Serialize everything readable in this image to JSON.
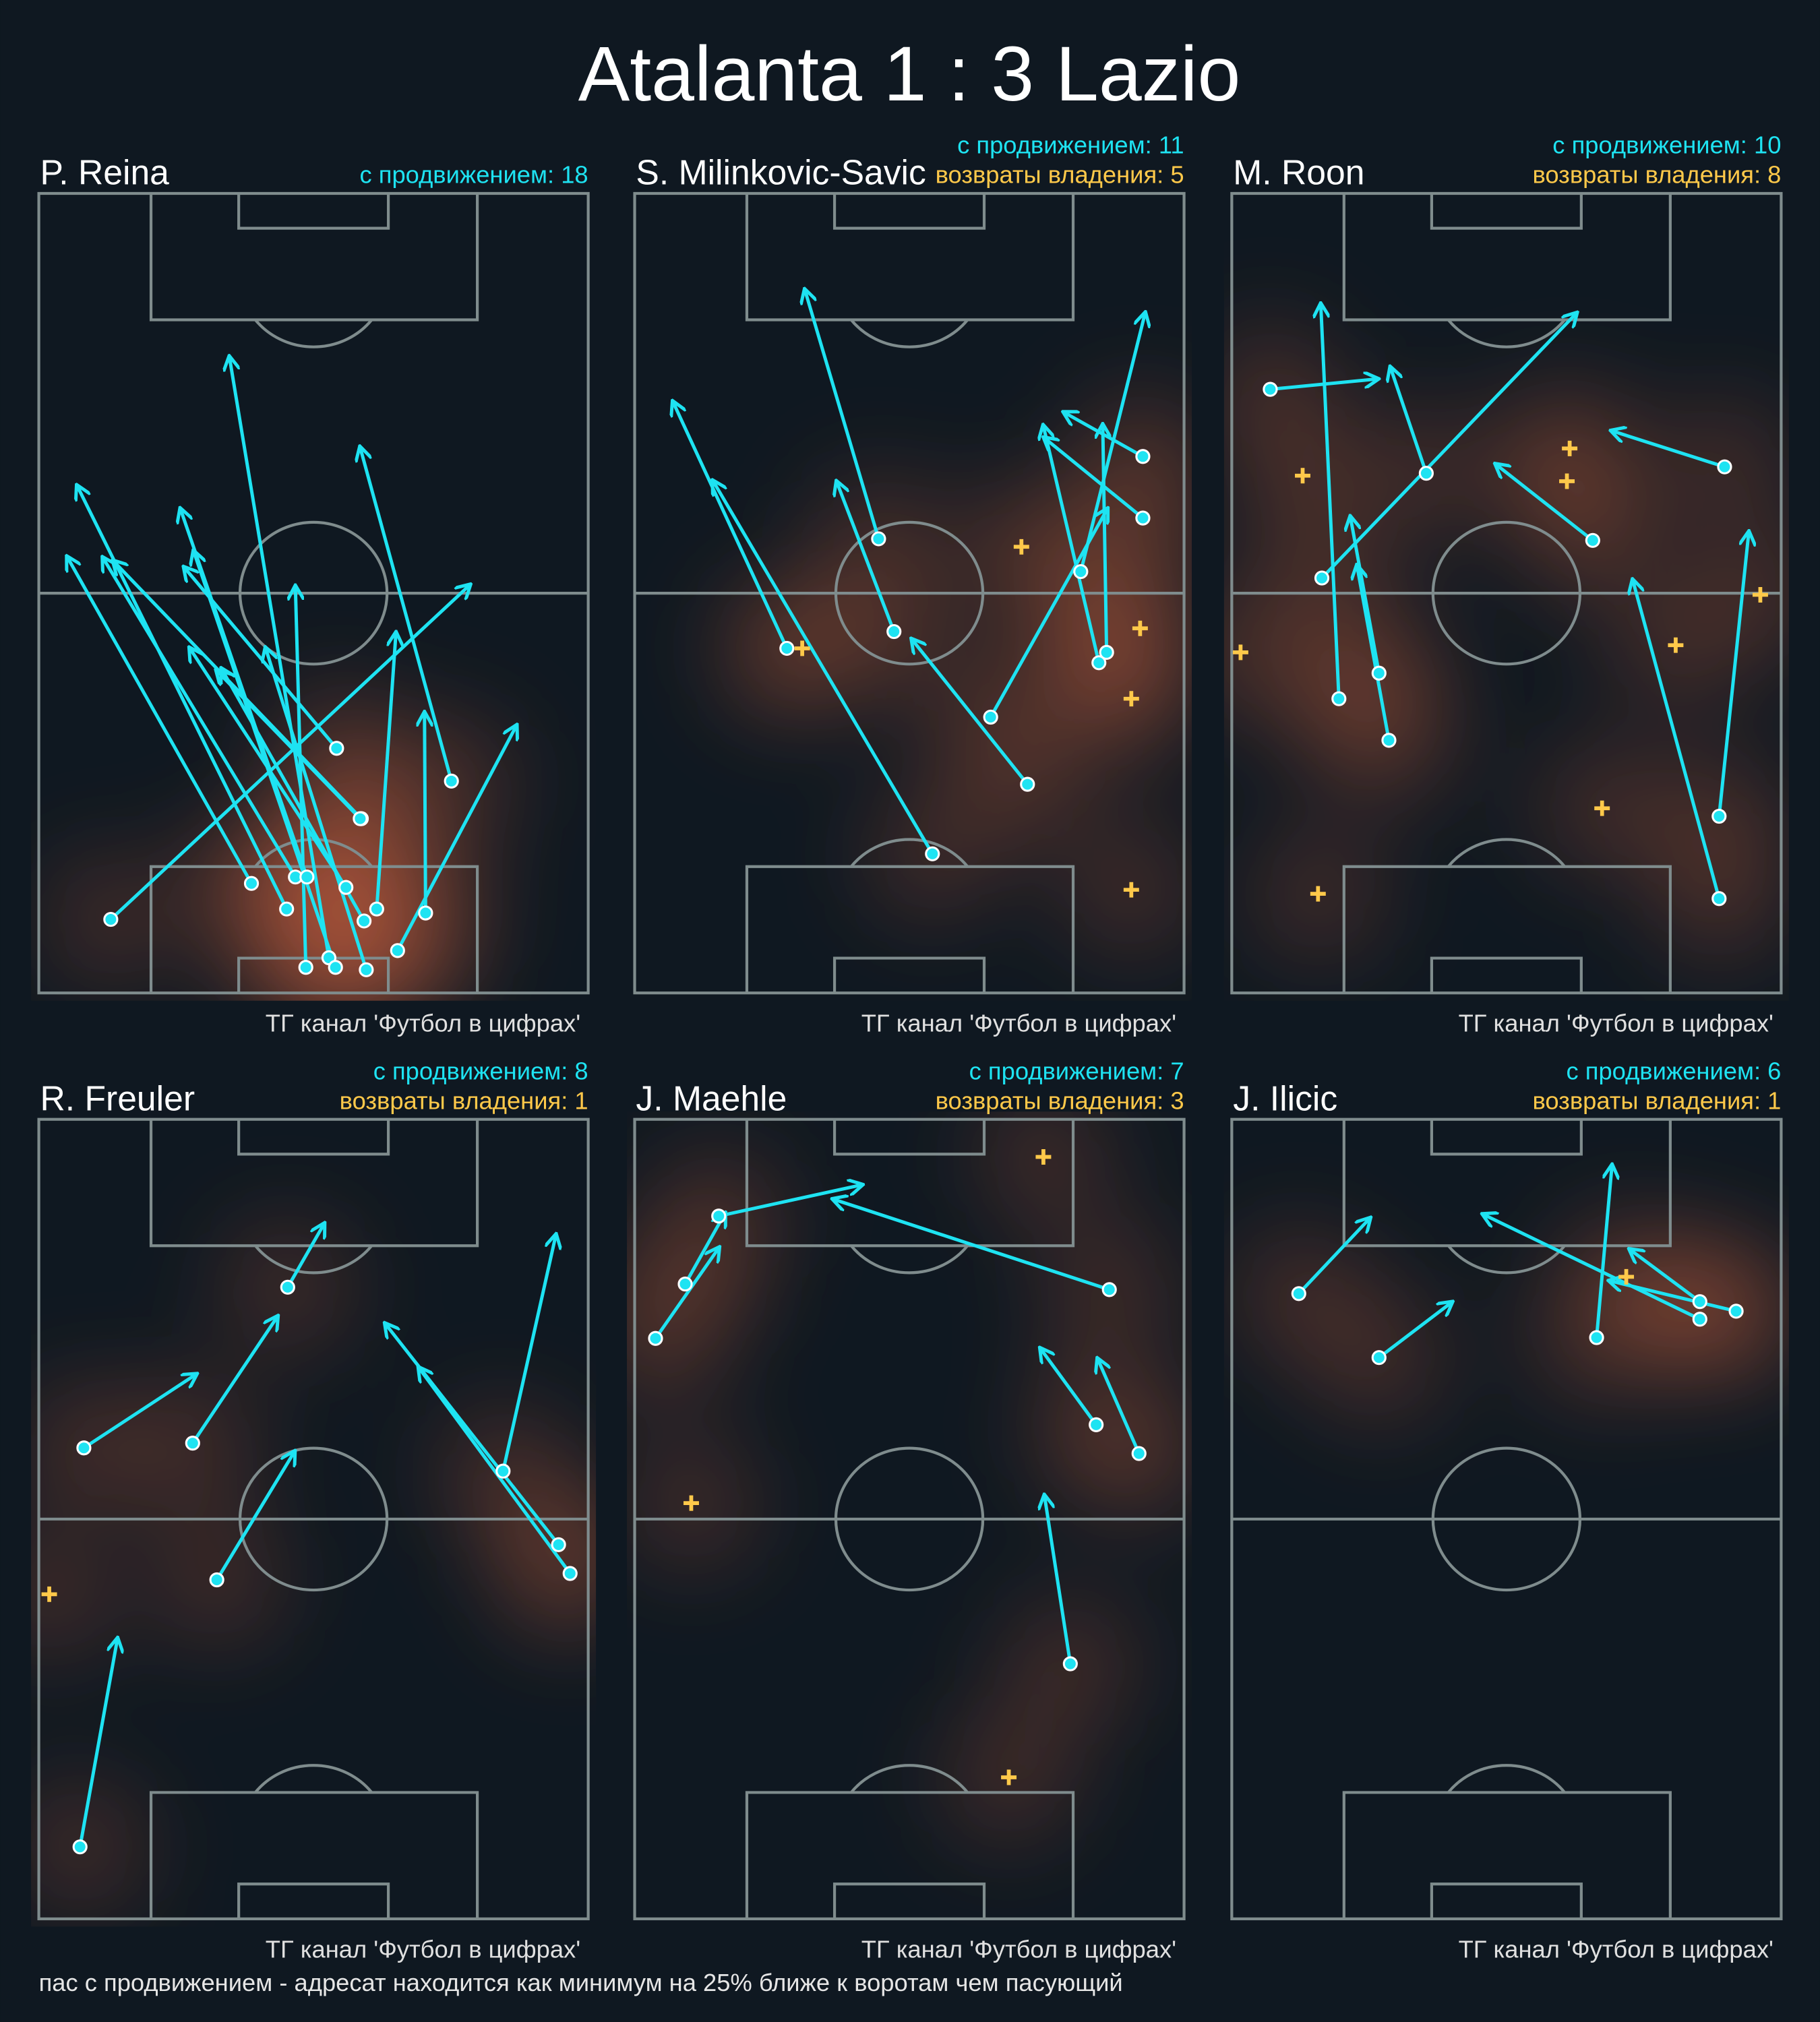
{
  "title": "Atalanta 1 : 3 Lazio",
  "footnote": "пас с продвижением - адресат находится как минимум на 25% ближе к воротам чем пасующий",
  "chart_data": [
    {
      "type": "pass-map",
      "title": "P. Reina",
      "progressive_label": "с продвижением: 18",
      "watermark": "ТГ канал 'Футбол в цифрах'",
      "xlim": [
        0,
        100
      ],
      "ylim": [
        0,
        100
      ],
      "pass_color": "#1ee3f2",
      "recovery_color": "#ffc94a",
      "passes": {
        "x": [
          13.1,
          38.7,
          45.1,
          46.7,
          48.8,
          48.6,
          52.8,
          54.0,
          55.9,
          58.7,
          54.2,
          59.2,
          59.6,
          61.5,
          65.3,
          70.4,
          75.1,
          58.5
        ],
        "y": [
          9.2,
          13.7,
          10.5,
          14.5,
          14.5,
          3.2,
          4.4,
          3.2,
          13.2,
          21.8,
          30.6,
          9.0,
          2.9,
          10.5,
          5.3,
          10.0,
          26.5,
          21.8
        ],
        "x_end": [
          78.4,
          5.2,
          7.0,
          11.7,
          25.8,
          46.7,
          34.7,
          28.2,
          27.5,
          13.6,
          26.5,
          33.3,
          41.3,
          65.0,
          86.9,
          70.2,
          58.5,
          32.4
        ],
        "y_end": [
          51.0,
          54.5,
          63.4,
          54.4,
          60.5,
          50.8,
          79.5,
          55.2,
          43.1,
          54.0,
          53.2,
          40.5,
          43.1,
          45.0,
          33.4,
          35.0,
          68.2,
          40.3
        ]
      },
      "recoveries": {
        "x": [],
        "y": []
      }
    },
    {
      "type": "pass-map",
      "title": "S. Milinkovic-Savic",
      "progressive_label": "с продвижением: 11",
      "recoveries_label": "возвраты владения: 5",
      "watermark": "ТГ канал 'Футбол в цифрах'",
      "xlim": [
        0,
        100
      ],
      "ylim": [
        0,
        100
      ],
      "pass_color": "#1ee3f2",
      "recovery_color": "#ffc94a",
      "passes": {
        "x": [
          27.7,
          54.2,
          47.2,
          44.4,
          71.5,
          64.8,
          81.2,
          84.5,
          85.9,
          92.5,
          92.5
        ],
        "y": [
          43.1,
          17.4,
          45.2,
          56.8,
          26.1,
          34.5,
          52.7,
          41.3,
          42.6,
          67.1,
          59.4
        ],
        "x_end": [
          7.0,
          14.3,
          36.8,
          31.0,
          50.5,
          86.0,
          92.9,
          74.4,
          85.2,
          78.2,
          74.6
        ],
        "y_end": [
          73.9,
          64.0,
          63.9,
          87.9,
          44.2,
          60.5,
          85.0,
          70.9,
          71.0,
          72.6,
          69.4
        ]
      },
      "recoveries": {
        "x": [
          70.4,
          92.0,
          90.4,
          90.4,
          30.5
        ],
        "y": [
          55.8,
          45.6,
          36.8,
          12.9,
          43.1
        ]
      }
    },
    {
      "type": "pass-map",
      "title": "M. Roon",
      "progressive_label": "с продвижением: 10",
      "recoveries_label": "возвраты владения: 8",
      "watermark": "ТГ канал 'Футбол в цифрах'",
      "xlim": [
        0,
        100
      ],
      "ylim": [
        0,
        100
      ],
      "pass_color": "#1ee3f2",
      "recovery_color": "#ffc94a",
      "passes": {
        "x": [
          7.0,
          35.4,
          16.4,
          19.5,
          26.8,
          28.6,
          65.7,
          89.7,
          88.7,
          88.7
        ],
        "y": [
          75.5,
          65.0,
          51.9,
          36.8,
          40.0,
          31.6,
          56.6,
          65.8,
          22.1,
          11.8
        ],
        "x_end": [
          26.5,
          28.9,
          62.7,
          16.2,
          21.6,
          22.8,
          48.1,
          69.2,
          94.1,
          73.0
        ],
        "y_end": [
          76.8,
          78.2,
          85.0,
          86.1,
          59.5,
          53.4,
          66.1,
          70.3,
          57.6,
          51.6
        ]
      },
      "recoveries": {
        "x": [
          12.9,
          61.5,
          61.0,
          96.2,
          80.8,
          1.6,
          67.4,
          15.7
        ],
        "y": [
          64.7,
          68.1,
          64.0,
          49.8,
          43.5,
          42.6,
          23.1,
          12.4
        ]
      }
    },
    {
      "type": "pass-map",
      "title": "R. Freuler",
      "progressive_label": "с продвижением: 8",
      "recoveries_label": "возвраты владения: 1",
      "watermark": "ТГ канал 'Футбол в цифрах'",
      "xlim": [
        0,
        100
      ],
      "ylim": [
        0,
        100
      ],
      "pass_color": "#1ee3f2",
      "recovery_color": "#ffc94a",
      "passes": {
        "x": [
          8.2,
          28.0,
          45.3,
          32.4,
          7.5,
          84.5,
          94.6,
          96.7
        ],
        "y": [
          58.9,
          59.5,
          79.0,
          42.4,
          9.0,
          56.0,
          46.8,
          43.2
        ],
        "x_end": [
          28.6,
          43.4,
          51.9,
          46.5,
          14.3,
          94.1,
          63.1,
          69.2
        ],
        "y_end": [
          68.1,
          75.3,
          86.9,
          58.4,
          35.0,
          85.5,
          74.4,
          68.9
        ]
      },
      "recoveries": {
        "x": [
          1.9
        ],
        "y": [
          40.6
        ]
      }
    },
    {
      "type": "pass-map",
      "title": "J. Maehle",
      "progressive_label": "с продвижением: 7",
      "recoveries_label": "возвраты владения: 3",
      "watermark": "ТГ канал 'Футбол в цифрах'",
      "xlim": [
        0,
        100
      ],
      "ylim": [
        0,
        100
      ],
      "pass_color": "#1ee3f2",
      "recovery_color": "#ffc94a",
      "passes": {
        "x": [
          3.8,
          9.2,
          86.4,
          15.3,
          84.0,
          91.8,
          79.3
        ],
        "y": [
          72.6,
          79.4,
          78.7,
          87.9,
          61.8,
          58.2,
          31.9
        ],
        "x_end": [
          15.3,
          16.4,
          36.2,
          41.3,
          73.9,
          84.3,
          74.6
        ],
        "y_end": [
          83.9,
          88.2,
          90.0,
          91.8,
          71.3,
          70.0,
          52.9
        ]
      },
      "recoveries": {
        "x": [
          74.4,
          10.3,
          68.1
        ],
        "y": [
          95.3,
          52.0,
          17.7
        ]
      }
    },
    {
      "type": "pass-map",
      "title": "J. Ilicic",
      "progressive_label": "с продвижением: 6",
      "recoveries_label": "возвраты владения: 1",
      "watermark": "ТГ канал 'Футбол в цифрах'",
      "xlim": [
        0,
        100
      ],
      "ylim": [
        0,
        100
      ],
      "pass_color": "#1ee3f2",
      "recovery_color": "#ffc94a",
      "passes": {
        "x": [
          12.2,
          26.8,
          85.2,
          66.4,
          91.8,
          85.2
        ],
        "y": [
          78.2,
          70.2,
          75.0,
          72.7,
          76.0,
          77.2
        ],
        "x_end": [
          25.1,
          40.0,
          45.8,
          69.2,
          68.8,
          72.5
        ],
        "y_end": [
          87.6,
          77.1,
          88.1,
          94.2,
          79.8,
          83.7
        ]
      },
      "recoveries": {
        "x": [
          71.8
        ],
        "y": [
          80.3
        ]
      }
    }
  ]
}
